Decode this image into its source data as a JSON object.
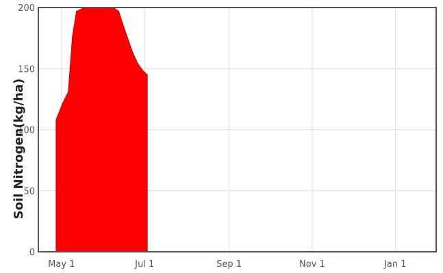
{
  "colors": {
    "area_fill": "#ff0000",
    "area_stroke": "#cc0000",
    "grid": "#dcdcdc",
    "frame": "#555555"
  },
  "chart_data": {
    "type": "area",
    "ylabel": "Soil Nitrogen(kg/ha)",
    "xlabel": "",
    "ylim": [
      0,
      200
    ],
    "xlim": [
      "2023-04-14",
      "2024-01-31"
    ],
    "y_ticks": [
      {
        "value": 0,
        "label": "0"
      },
      {
        "value": 50,
        "label": "50"
      },
      {
        "value": 100,
        "label": "100"
      },
      {
        "value": 150,
        "label": "150"
      },
      {
        "value": 200,
        "label": "200"
      }
    ],
    "x_ticks": [
      {
        "value": "2023-05-01",
        "label": "May 1"
      },
      {
        "value": "2023-07-01",
        "label": "Jul 1"
      },
      {
        "value": "2023-09-01",
        "label": "Sep 1"
      },
      {
        "value": "2023-11-01",
        "label": "Nov 1"
      },
      {
        "value": "2024-01-01",
        "label": "Jan 1"
      }
    ],
    "grid": true,
    "series": [
      {
        "x": [
          "2023-04-27",
          "2023-04-27",
          "2023-05-02",
          "2023-05-06",
          "2023-05-09",
          "2023-05-12",
          "2023-05-18",
          "2023-05-25",
          "2023-06-01",
          "2023-06-08",
          "2023-06-12",
          "2023-06-14",
          "2023-06-17",
          "2023-06-22",
          "2023-06-26",
          "2023-06-30",
          "2023-07-03",
          "2023-07-03"
        ],
        "values": [
          0,
          108,
          122,
          131,
          176,
          197,
          202,
          206,
          204,
          200,
          197,
          190,
          180,
          164,
          154,
          148,
          145,
          0
        ]
      }
    ]
  }
}
